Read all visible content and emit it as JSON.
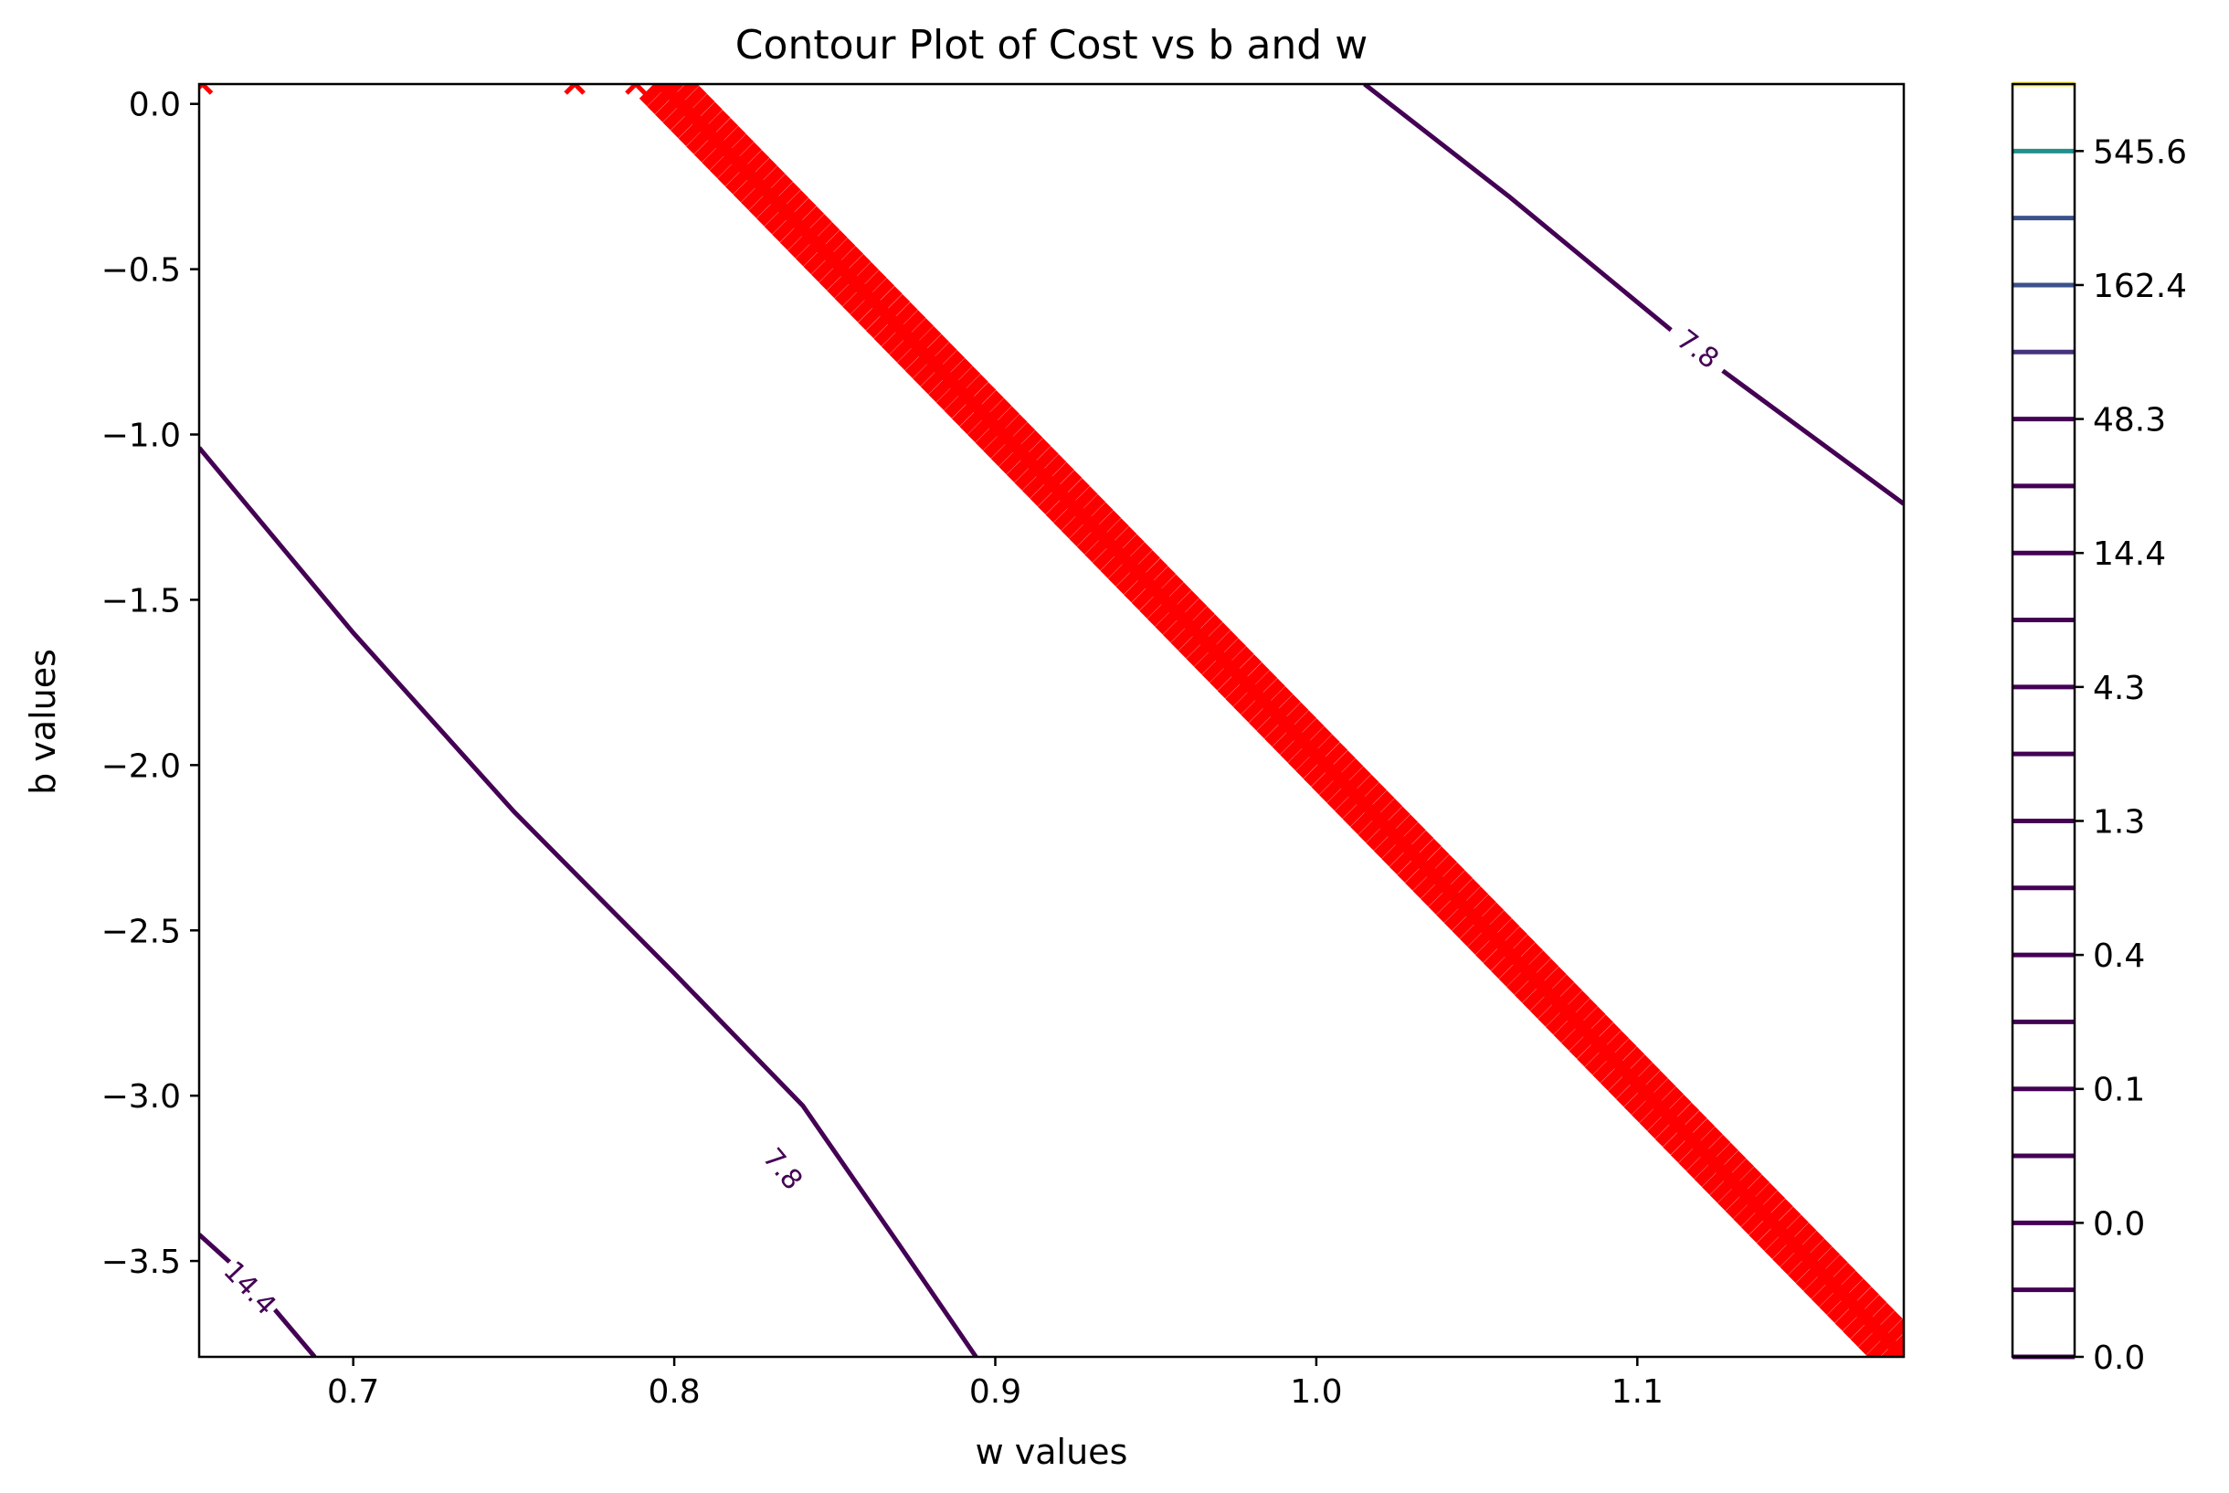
{
  "chart_data": {
    "type": "contour",
    "title": "Contour Plot of Cost vs b and w",
    "xlabel": "w values",
    "ylabel": "b values",
    "xlim": [
      0.652,
      1.183
    ],
    "ylim": [
      -3.79,
      0.06
    ],
    "grid": false,
    "xticks": [
      {
        "value": 0.7,
        "label": "0.7"
      },
      {
        "value": 0.8,
        "label": "0.8"
      },
      {
        "value": 0.9,
        "label": "0.9"
      },
      {
        "value": 1.0,
        "label": "1.0"
      },
      {
        "value": 1.1,
        "label": "1.1"
      }
    ],
    "yticks": [
      {
        "value": 0.0,
        "label": "0.0"
      },
      {
        "value": -0.5,
        "label": "−0.5"
      },
      {
        "value": -1.0,
        "label": "−1.0"
      },
      {
        "value": -1.5,
        "label": "−1.5"
      },
      {
        "value": -2.0,
        "label": "−2.0"
      },
      {
        "value": -2.5,
        "label": "−2.5"
      },
      {
        "value": -3.0,
        "label": "−3.0"
      },
      {
        "value": -3.5,
        "label": "−3.5"
      }
    ],
    "contours": [
      {
        "level_label": "7.8",
        "color": "#440154",
        "points": [
          [
            1.015,
            0.06
          ],
          [
            1.06,
            -0.28
          ],
          [
            1.12,
            -0.76
          ],
          [
            1.183,
            -1.21
          ]
        ],
        "labels": [
          {
            "w": 1.119,
            "b": -0.74,
            "text": "7.8"
          }
        ]
      },
      {
        "level_label": "7.8",
        "color": "#440154",
        "points": [
          [
            0.652,
            -1.04
          ],
          [
            0.7,
            -1.6
          ],
          [
            0.75,
            -2.14
          ],
          [
            0.8,
            -2.63
          ],
          [
            0.84,
            -3.03
          ],
          [
            0.87,
            -3.45
          ],
          [
            0.894,
            -3.79
          ]
        ],
        "labels": [
          {
            "w": 0.834,
            "b": -3.22,
            "text": "7.8"
          }
        ]
      },
      {
        "level_label": "14.4",
        "color": "#440154",
        "points": [
          [
            0.652,
            -3.42
          ],
          [
            0.668,
            -3.56
          ],
          [
            0.688,
            -3.79
          ]
        ],
        "labels": [
          {
            "w": 0.668,
            "b": -3.58,
            "text": "14.4"
          }
        ]
      }
    ],
    "path": {
      "name": "",
      "marker": "x",
      "color": "#ff0000",
      "band_start": [
        0.796,
        0.06
      ],
      "band_end": [
        1.183,
        -3.79
      ],
      "count": 160,
      "sparse_points": [
        [
          0.653,
          0.06
        ],
        [
          0.769,
          0.06
        ],
        [
          0.788,
          0.06
        ]
      ]
    },
    "colorbar": {
      "tick_labels": [
        "0.0",
        "0.0",
        "0.1",
        "0.4",
        "1.3",
        "4.3",
        "14.4",
        "48.3",
        "162.4",
        "545.6"
      ],
      "levels": 20,
      "line_colors": [
        "#440154",
        "#440154",
        "#440154",
        "#440154",
        "#440154",
        "#440154",
        "#440154",
        "#440154",
        "#440154",
        "#440154",
        "#440154",
        "#440154",
        "#440154",
        "#440154",
        "#440154",
        "#46327e",
        "#3b528b",
        "#3b528b",
        "#21908d",
        "#fde725"
      ]
    }
  }
}
